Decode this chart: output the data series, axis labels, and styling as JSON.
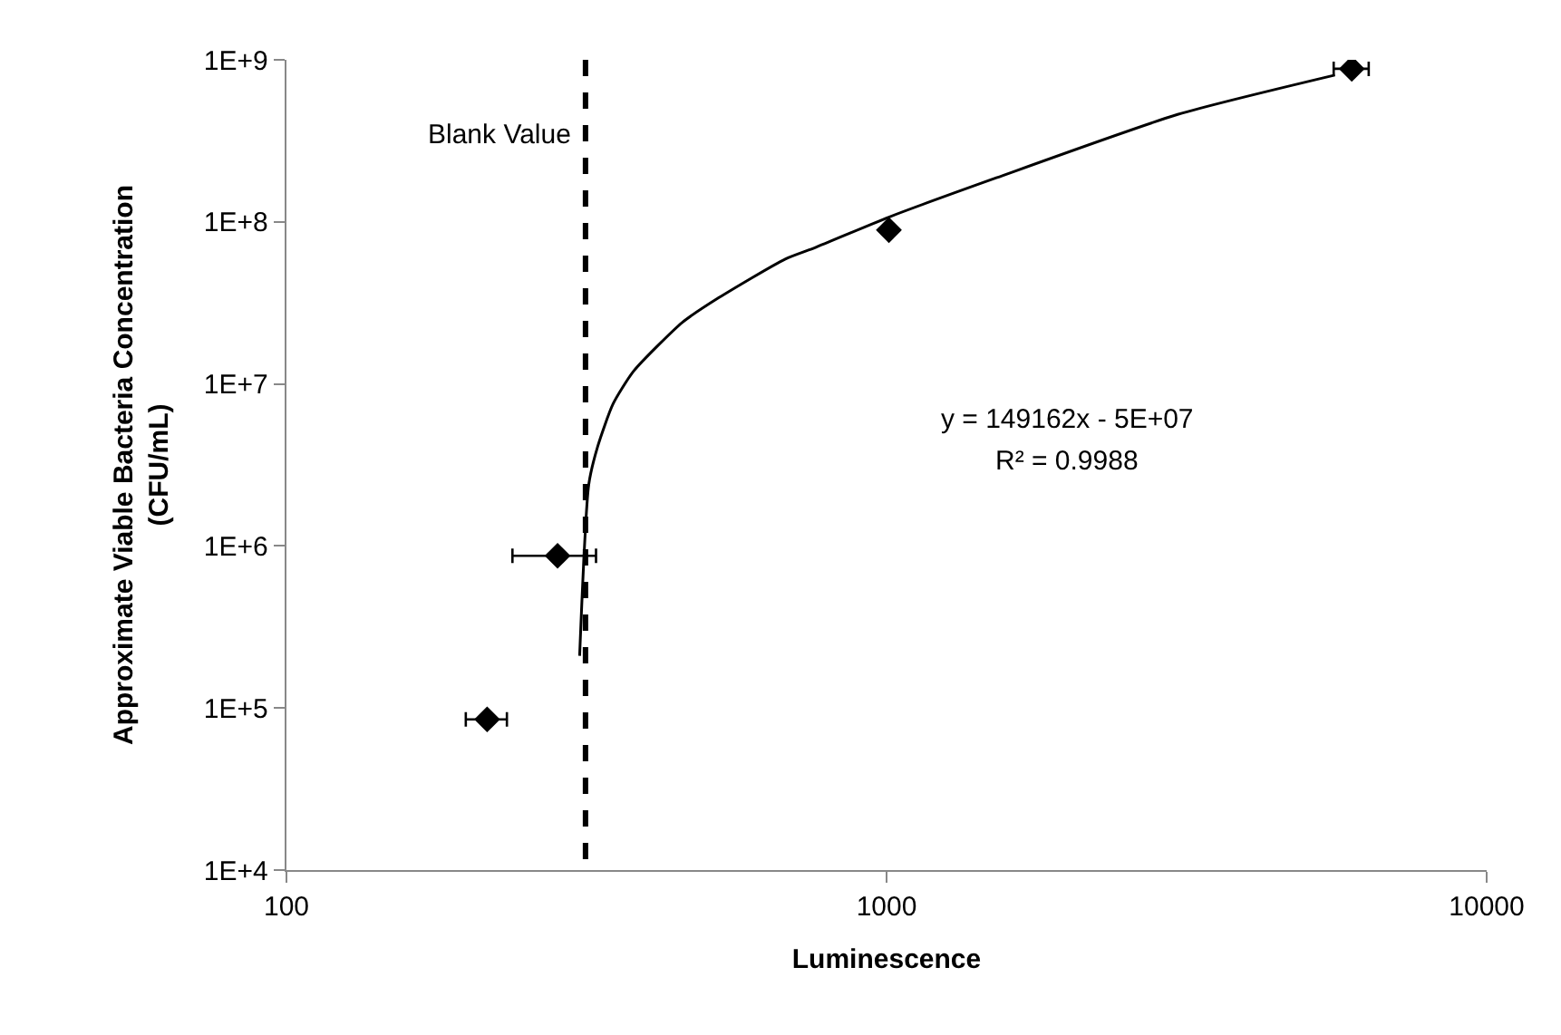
{
  "chart_data": {
    "type": "scatter",
    "xlabel": "Luminescence",
    "ylabel": "Approximate Viable Bacteria Concentration\n(CFU/mL)",
    "log": "xy",
    "xlim": [
      100,
      10000
    ],
    "xticks": [
      100,
      1000,
      10000
    ],
    "ylim": [
      10000,
      1000000000
    ],
    "yticks": [
      {
        "value": 10000,
        "label": "1E+4"
      },
      {
        "value": 100000,
        "label": "1E+5"
      },
      {
        "value": 1000000,
        "label": "1E+6"
      },
      {
        "value": 10000000,
        "label": "1E+7"
      },
      {
        "value": 100000000,
        "label": "1E+8"
      },
      {
        "value": 1000000000,
        "label": "1E+9"
      }
    ],
    "series": [
      {
        "marker": "diamond",
        "color": "#000000",
        "x": [
          216,
          283,
          1009,
          5960
        ],
        "values": [
          85000,
          870000,
          89000000,
          880000000
        ],
        "xerrors": [
          17,
          45,
          null,
          400
        ]
      },
      {
        "type": "line",
        "marker": "none",
        "color": "#000000",
        "line_style": "solid",
        "x": [
          308,
          319,
          330,
          350,
          379,
          457,
          525,
          678,
          761,
          1009,
          1524,
          3055,
          5585
        ],
        "values": [
          210000,
          2400000,
          4100000,
          7500000,
          12000000,
          24000000,
          34000000,
          59000000,
          69500000,
          107000000,
          187000000,
          460000000,
          805000000
        ]
      }
    ],
    "ref_lines": [
      {
        "axis": "x",
        "value": 315,
        "label": "Blank Value",
        "color": "#000000",
        "line_style": "dashed"
      }
    ],
    "annotations": [
      "y = 149162x - 5E+07",
      "R² = 0.9988"
    ]
  }
}
